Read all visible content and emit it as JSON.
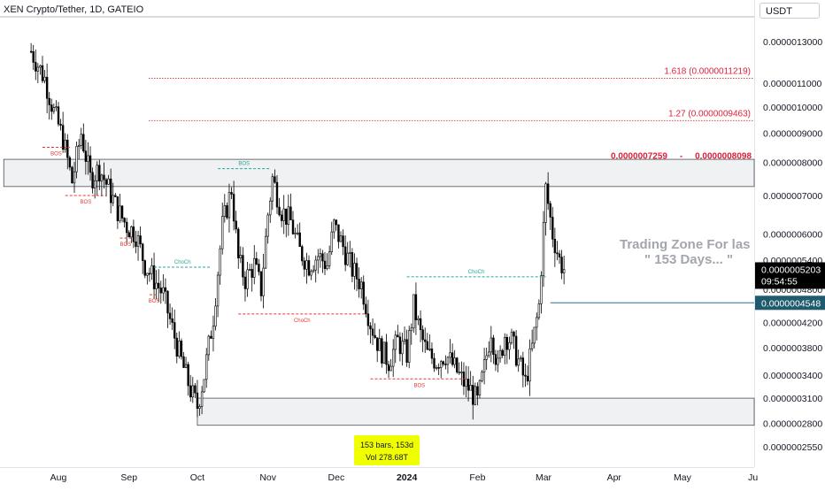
{
  "header": {
    "symbol_title": "XEN Crypto/Tether, 1D, GATEIO",
    "currency": "USDT"
  },
  "chart_data": {
    "type": "candlestick",
    "title": "XEN Crypto/Tether, 1D, GATEIO",
    "y_scale": "log",
    "ylim": [
      2.5e-07,
      1.4e-06
    ],
    "y_ticks": [
      {
        "value": 1.3e-06,
        "label": "0.0000013000"
      },
      {
        "value": 1.1e-06,
        "label": "0.0000011000"
      },
      {
        "value": 1e-06,
        "label": "0.0000010000"
      },
      {
        "value": 9e-07,
        "label": "0.0000009000"
      },
      {
        "value": 8e-07,
        "label": "0.0000008000"
      },
      {
        "value": 7e-07,
        "label": "0.0000007000"
      },
      {
        "value": 6e-07,
        "label": "0.0000006000"
      },
      {
        "value": 5.4e-07,
        "label": "0.0000005400"
      },
      {
        "value": 4.8e-07,
        "label": "0.0000004800"
      },
      {
        "value": 4.2e-07,
        "label": "0.0000004200"
      },
      {
        "value": 3.8e-07,
        "label": "0.0000003800"
      },
      {
        "value": 3.4e-07,
        "label": "0.0000003400"
      },
      {
        "value": 3.1e-07,
        "label": "0.0000003100"
      },
      {
        "value": 2.8e-07,
        "label": "0.0000002800"
      },
      {
        "value": 2.55e-07,
        "label": "0.0000002550"
      }
    ],
    "x_ticks": [
      {
        "label": "Aug",
        "day": 12,
        "bold": false
      },
      {
        "label": "Sep",
        "day": 43,
        "bold": false
      },
      {
        "label": "Oct",
        "day": 73,
        "bold": false
      },
      {
        "label": "Nov",
        "day": 104,
        "bold": false
      },
      {
        "label": "Dec",
        "day": 134,
        "bold": false
      },
      {
        "label": "2024",
        "day": 165,
        "bold": true
      },
      {
        "label": "Feb",
        "day": 196,
        "bold": false
      },
      {
        "label": "Mar",
        "day": 225,
        "bold": false
      },
      {
        "label": "Apr",
        "day": 256,
        "bold": false
      },
      {
        "label": "May",
        "day": 286,
        "bold": false
      },
      {
        "label": "Ju",
        "day": 317,
        "bold": false
      }
    ],
    "x_range_days": [
      -12,
      320
    ],
    "price_path": [
      [
        0,
        1.25e-06
      ],
      [
        6,
        1.12e-06
      ],
      [
        10,
        9.8e-07
      ],
      [
        14,
        8.8e-07
      ],
      [
        18,
        7.4e-07
      ],
      [
        22,
        9e-07
      ],
      [
        26,
        7.5e-07
      ],
      [
        30,
        7.8e-07
      ],
      [
        34,
        7.2e-07
      ],
      [
        38,
        6.6e-07
      ],
      [
        42,
        6.2e-07
      ],
      [
        46,
        6e-07
      ],
      [
        50,
        5.3e-07
      ],
      [
        54,
        5e-07
      ],
      [
        58,
        4.7e-07
      ],
      [
        62,
        4.1e-07
      ],
      [
        66,
        3.6e-07
      ],
      [
        70,
        3.2e-07
      ],
      [
        73,
        3e-07
      ],
      [
        76,
        3.4e-07
      ],
      [
        80,
        4.3e-07
      ],
      [
        84,
        6.2e-07
      ],
      [
        88,
        7.2e-07
      ],
      [
        91,
        5.4e-07
      ],
      [
        94,
        5e-07
      ],
      [
        98,
        5.3e-07
      ],
      [
        101,
        4.8e-07
      ],
      [
        104,
        6.5e-07
      ],
      [
        106,
        7.5e-07
      ],
      [
        110,
        6.6e-07
      ],
      [
        114,
        6.3e-07
      ],
      [
        118,
        5.6e-07
      ],
      [
        122,
        5.3e-07
      ],
      [
        126,
        5.5e-07
      ],
      [
        130,
        5.3e-07
      ],
      [
        133,
        6.2e-07
      ],
      [
        137,
        5.7e-07
      ],
      [
        141,
        5.2e-07
      ],
      [
        145,
        4.9e-07
      ],
      [
        149,
        4.2e-07
      ],
      [
        153,
        3.8e-07
      ],
      [
        157,
        3.6e-07
      ],
      [
        161,
        3.9e-07
      ],
      [
        165,
        3.7e-07
      ],
      [
        168,
        4.5e-07
      ],
      [
        171,
        4e-07
      ],
      [
        174,
        3.7e-07
      ],
      [
        178,
        3.6e-07
      ],
      [
        182,
        3.7e-07
      ],
      [
        186,
        3.5e-07
      ],
      [
        190,
        3.3e-07
      ],
      [
        193,
        3.2e-07
      ],
      [
        196,
        3.05e-07
      ],
      [
        199,
        3.5e-07
      ],
      [
        202,
        4.1e-07
      ],
      [
        205,
        3.5e-07
      ],
      [
        208,
        4e-07
      ],
      [
        211,
        3.9e-07
      ],
      [
        214,
        3.6e-07
      ],
      [
        217,
        3.3e-07
      ],
      [
        220,
        3.8e-07
      ],
      [
        223,
        4.5e-07
      ],
      [
        226,
        7.2e-07
      ],
      [
        229,
        6e-07
      ],
      [
        232,
        5.4e-07
      ],
      [
        234,
        5.203e-07
      ]
    ],
    "zones": [
      {
        "id": "upper-zone",
        "from": 7.259e-07,
        "to": 8.098e-07,
        "label": "0.0000007259     -     0.0000008098",
        "start_day": -12
      },
      {
        "id": "lower-zone",
        "from": 2.78e-07,
        "to": 3.1e-07,
        "label": "",
        "start_day": 73
      }
    ],
    "fib_levels": [
      {
        "value": 1.1219e-06,
        "label": "1.618 (0.0000011219)"
      },
      {
        "value": 9.463e-07,
        "label": "1.27 (0.0000009463)"
      }
    ],
    "structure_marks": [
      {
        "label": "BOS",
        "color": "#e53935",
        "value": 8.5e-07,
        "from_day": 5,
        "to_day": 17
      },
      {
        "label": "BOS",
        "color": "#e53935",
        "value": 7e-07,
        "from_day": 15,
        "to_day": 33
      },
      {
        "label": "BOS",
        "color": "#e53935",
        "value": 5.9e-07,
        "from_day": 39,
        "to_day": 44
      },
      {
        "label": "BOS",
        "color": "#e53935",
        "value": 4.7e-07,
        "from_day": 52,
        "to_day": 56
      },
      {
        "label": "ChoCh",
        "color": "#26a69a",
        "value": 5.25e-07,
        "from_day": 54,
        "to_day": 79
      },
      {
        "label": "BOS",
        "color": "#26a69a",
        "value": 7.8e-07,
        "from_day": 82,
        "to_day": 105
      },
      {
        "label": "ChoCh",
        "color": "#e53935",
        "value": 4.35e-07,
        "from_day": 91,
        "to_day": 147
      },
      {
        "label": "ChoCh",
        "color": "#26a69a",
        "value": 5.05e-07,
        "from_day": 165,
        "to_day": 226
      },
      {
        "label": "BOS",
        "color": "#e53935",
        "value": 3.35e-07,
        "from_day": 149,
        "to_day": 192
      }
    ],
    "horizontal_line": {
      "value": 4.548e-07,
      "color": "#2e6f8e",
      "from_day": 228
    },
    "price_labels": {
      "current": "0.0000005203",
      "countdown": "09:54:55",
      "line": "0.0000004548"
    },
    "annotations": {
      "trading_zone_line1": "Trading Zone  For las",
      "trading_zone_line2": "\" 153 Days... \"",
      "measure_line1": "153 bars, 153d",
      "measure_line2": "Vol 278.68T"
    }
  }
}
